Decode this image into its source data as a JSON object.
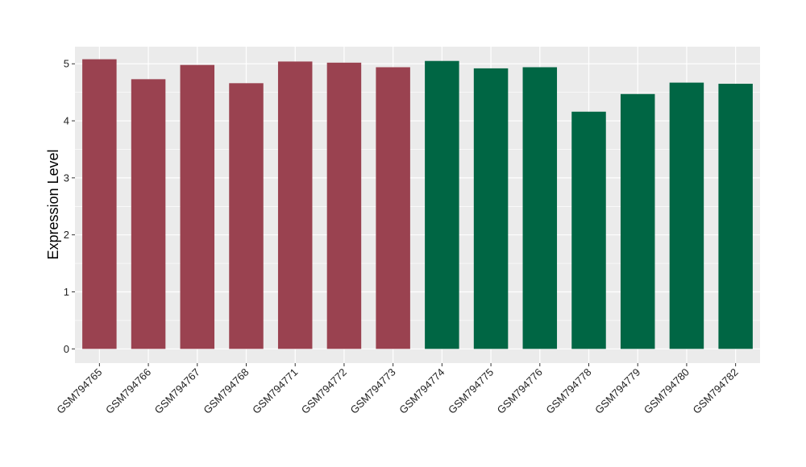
{
  "chart_data": {
    "type": "bar",
    "title": "",
    "xlabel": "",
    "ylabel": "Expression Level",
    "ylim": [
      -0.25,
      5.3
    ],
    "yticks": [
      0,
      1,
      2,
      3,
      4,
      5
    ],
    "grid": true,
    "legend": "none",
    "colors": {
      "group_a": "#9a4250",
      "group_b": "#006644",
      "panel": "#ebebeb",
      "grid": "#ffffff"
    },
    "categories": [
      "GSM794765",
      "GSM794766",
      "GSM794767",
      "GSM794768",
      "GSM794771",
      "GSM794772",
      "GSM794773",
      "GSM794774",
      "GSM794775",
      "GSM794776",
      "GSM794778",
      "GSM794779",
      "GSM794780",
      "GSM794782"
    ],
    "values": [
      5.08,
      4.73,
      4.98,
      4.66,
      5.04,
      5.02,
      4.94,
      5.05,
      4.92,
      4.94,
      4.16,
      4.47,
      4.67,
      4.65
    ],
    "groups": [
      "a",
      "a",
      "a",
      "a",
      "a",
      "a",
      "a",
      "b",
      "b",
      "b",
      "b",
      "b",
      "b",
      "b"
    ]
  }
}
